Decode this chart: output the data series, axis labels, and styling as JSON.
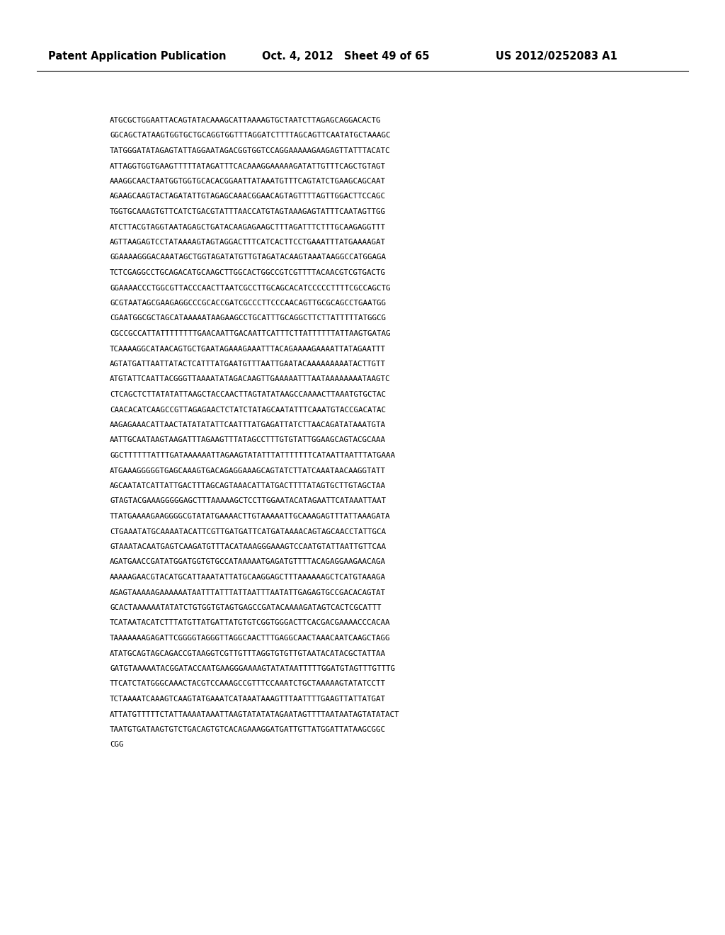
{
  "header_left": "Patent Application Publication",
  "header_mid": "Oct. 4, 2012   Sheet 49 of 65",
  "header_right": "US 2012/0252083 A1",
  "background_color": "#ffffff",
  "text_color": "#000000",
  "header_fontsize": 10.5,
  "body_fontsize": 7.8,
  "sequence_lines": [
    "ATGCGCTGGAATTACAGTATACAAAGCATTAAAAGTGCTAATCTTAGAGCAGGACACTG",
    "GGCAGCTATAAGTGGTGCTGCAGGTGGTTTAGGATCTTTTAGCAGTTCAATATGCTAAAGC",
    "TATGGGATATAGAGTATTAGGAATAGACGGTGGTCCAGGAAAAAGAAGAGTTATTTACATC",
    "ATTAGGTGGTGAAGTTTTTATAGATTTCACAAAGGAAAAAGATATTGTTTCAGCTGTAGT",
    "AAAGGCAACTAATGGTGGTGCACACGGAATTATAAATGTTTCAGTATCTGAAGCAGCAAT",
    "AGAAGCAAGTACTAGATATTGTAGAGCAAACGGAACAGTAGTTTTAGTTGGACTTCCAGC",
    "TGGTGCAAAGTGTTCATCTGACGTATTTAACCATGTAGTAAAGAGTATTTCAATAGTTGG",
    "ATCTTACGTAGGTAATAGAGCTGATACAAGAGAAGCTTTAGATTTCTTTGCAAGAGGTTT",
    "AGTTAAGAGTCCTATAAAAGTAGTAGGACTTTCATCACTTCCTGAAATTTATGAAAAGAT",
    "GGAAAAGGGACAAATAGCTGGTAGATATGTTGTAGATACAAGTAAATAAGGCCATGGAGA",
    "TCTCGAGGCCTGCAGACATGCAAGCTTGGCACTGGCCGTCGTTTTACAACGTCGTGACTG",
    "GGAAAACCCTGGCGTTACCCAACTTAATCGCCTTGCAGCACATCCCCCTTTTCGCCAGCTG",
    "GCGTAATAGCGAAGAGGCCCGCACCGATCGCCCTTCCCAACAGTTGCGCAGCCTGAATGG",
    "CGAATGGCGCTAGCATAAAAATAAGAAGCCTGCATTTGCAGGCTTCTTATTTTTATGGCG",
    "CGCCGCCATTATTTTTTTTGAACAATTGACAATTCATTTCTTATTTTTTATTAAGTGATAG",
    "TCAAAAGGCATAACAGTGCTGAATAGAAAGAAATTTACAGAAAAGAAAATTATAGAATTT",
    "AGTATGATTAATTATACTCATTTATGAATGTTTAATTGAATACAAAAAAAAATACTTGTT",
    "ATGTATTCAATTACGGGTTAAAATATAGACAAGTTGAAAAATTTAATAAAAAAAATAAGTC",
    "CTCAGCTCTTATATATTAAGCTACCAACTTAGTATATAAGCCAAAACTTAAATGTGCTAC",
    "CAACACATCAAGCCGTTAGAGAACTCTATCTATAGCAATATTTCAAATGTACCGACATAC",
    "AAGAGAAACATTAACTATATATATTCAATTTATGAGATTATCTTAACAGATATAAATGTA",
    "AATTGCAATAAGTAAGATTTAGAAGTTTATAGCCTTTGTGTATTGGAAGCAGTACGCAAA",
    "GGCTTTTTTATTTGATAAAAAATTAGAAGTATATTTATTTTTTTCATAATTAATTTATGAAA",
    "ATGAAAGGGGGTGAGCAAAGTGACAGAGGAAAGCAGTATCTTATCAAATAACAAGGTATT",
    "AGCAATATCATTATTGACTTTAGCAGTAAACATTATGACTTTTATAGTGCTTGTAGCTAA",
    "GTAGTACGAAAGGGGGAGCTTTAAAAAGCTCCTTGGAATACATAGAATTCATAAATTAAT",
    "TTATGAAAAGAAGGGGCGTATATGAAAACTTGTAAAAATTGCAAAGAGTTTATTAAAGATA",
    "CTGAAATATGCAAAATACATTCGTTGATGATTCATGATAAAACAGTAGCAACCTATTGCA",
    "GTAAATACAATGAGTCAAGATGTTTACATAAAGGGAAAGTCCAATGTATTAATTGTTCAA",
    "AGATGAACCGATATGGATGGTGTGCCATAAAAATGAGATGTTTTACAGAGGAAGAACAGA",
    "AAAAAGAACGTACATGCATTAAATATTATGCAAGGAGCTTTAAAAAAGCTCATGTAAAGA",
    "AGAGTAAAAAGAAAAAATAATTTATTTATTAATTTAATATTGAGAGTGCCGACACAGTAT",
    "GCACTAAAAAATATATCTGTGGTGTAGTGAGCCGATACAAAAGATAGTCACTCGCATTT",
    "TCATAATACATCTTTATGTTATGATTATGTGTCGGTGGGACTTCACGACGAAAACCCACAA",
    "TAAAAAAAGAGATTCGGGGTAGGGTTAGGCAACTTTGAGGCAACTAAACAATCAAGCTAGG",
    "ATATGCAGTAGCAGACCGTAAGGTCGTTGTTTAGGTGTGTTGTAATACATACGCTATTAA",
    "GATGTAAAAATACGGATACCAATGAAGGGAAAAGTATATAATTTTTGGATGTAGTTTGTTTG",
    "TTCATCTATGGGCAAACTACGTCCAAAGCCGTTTCCAAATCTGCTAAAAAGTATATCCTT",
    "TCTAAAATCAAAGTCAAGTATGAAATCATAAATAAAGTTTAATTTTGAAGTTATTATGAT",
    "ATTATGTTTTTCTATTAAAATAAATTAAGTATATATAGAATAGTTTTAATAATAGTATATACT",
    "TAATGTGATAAGTGTCTGACAGTGTCACAGAAAGGATGATTGTTATGGATTATAAGCGGC",
    "CGG"
  ]
}
